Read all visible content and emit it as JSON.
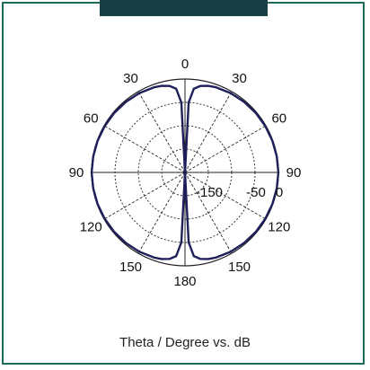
{
  "colors": {
    "frame": "#1f6b5a",
    "top_bar": "#173f44",
    "curve": "#1f1f5a",
    "grid": "#222222",
    "background": "#ffffff"
  },
  "chart_data": {
    "type": "polar",
    "title": "",
    "caption": "Theta / Degree vs. dB",
    "angle_unit": "degree",
    "angle_zero": "top",
    "angle_ticks": [
      0,
      30,
      60,
      90,
      120,
      150,
      180,
      150,
      120,
      90,
      60,
      30
    ],
    "radial_tick_labels": [
      "-150",
      "-50",
      "0"
    ],
    "radial_ticks_db": [
      -150,
      -100,
      -50,
      0
    ],
    "rlim_db": [
      -200,
      0
    ],
    "grid": true,
    "series": [
      {
        "theta_deg": [
          0,
          3,
          6,
          10,
          15,
          20,
          30,
          40,
          50,
          60,
          70,
          80,
          90,
          100,
          110,
          120,
          130,
          140,
          150,
          160,
          165,
          170,
          174,
          177,
          180
        ],
        "r_db": [
          -200,
          -50,
          -20,
          -12,
          -8,
          -6,
          -4,
          -3,
          -2,
          -1.5,
          -1,
          -0.5,
          0,
          -0.5,
          -1,
          -1.5,
          -2,
          -3,
          -4,
          -6,
          -8,
          -12,
          -20,
          -50,
          -200
        ]
      }
    ]
  }
}
